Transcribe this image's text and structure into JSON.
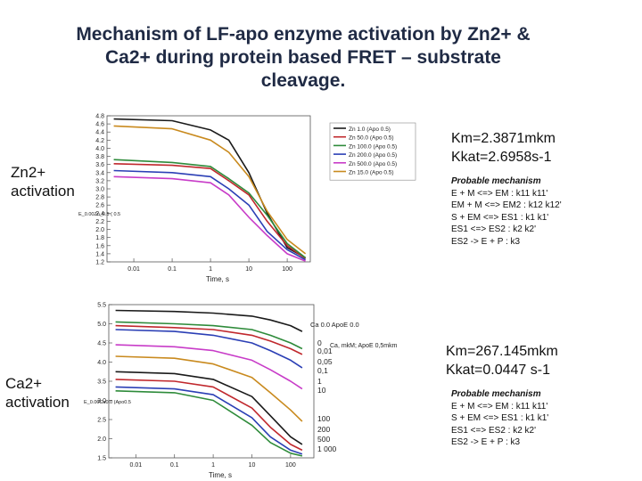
{
  "title_lines": [
    "Mechanism of LF-apo enzyme activation by Zn2+ &",
    "Ca2+ during protein based FRET – substrate",
    "cleavage."
  ],
  "zn": {
    "side_label_lines": [
      "Zn2+",
      "activation"
    ],
    "km": "Km=2.3871mkm",
    "kkat": "Kkat=2.6958s-1",
    "mechanism_title": "Probable mechanism",
    "mechanism_lines": [
      "E + M <=> EM : k11 k11'",
      "EM + M <=> EM2 : k12 k12'",
      "S + EM <=> ES1 : k1 k1'",
      "ES1 <=> ES2 : k2 k2'",
      "ES2 -> E + P : k3"
    ],
    "y_marker": "E_0.00Zn_0.5 ( 0.5"
  },
  "ca": {
    "side_label_lines": [
      "Ca2+",
      "activation"
    ],
    "km": "Km=267.145mkm",
    "kkat": "Kkat=0.0447 s-1",
    "mechanism_title": "Probable mechanism",
    "mechanism_lines": [
      "E + M <=> EM : k11 k11'",
      "S + EM <=> ES1 : k1 k1'",
      "ES1 <=> ES2 : k2 k2'",
      "ES2 -> E + P : k3"
    ],
    "y_marker": "E_0.00Ca0.0 (Apo0.5",
    "top_note": "Ca 0.0 ApoE 0.0",
    "legend_title": "Ca, mkM; ApoE 0,5mkm"
  },
  "chart_data": [
    {
      "type": "line",
      "title": "",
      "xlabel": "Time, s",
      "ylabel": "",
      "x_scale": "log",
      "xlim": [
        0.002,
        400
      ],
      "ylim": [
        1.2,
        4.8
      ],
      "x_ticks": [
        "0.01",
        "0.1",
        "1",
        "10",
        "100"
      ],
      "y_ticks": [
        "1.2",
        "1.4",
        "1.6",
        "1.8",
        "2.0",
        "2.2",
        "2.4",
        "2.6",
        "2.8",
        "3.0",
        "3.2",
        "3.4",
        "3.6",
        "3.8",
        "4.0",
        "4.2",
        "4.4",
        "4.6",
        "4.8"
      ],
      "legend_position": "top-right",
      "series": [
        {
          "name": "Zn 1.0 (Apo 0.5)",
          "color": "#1a1a1a",
          "x": [
            0.003,
            0.1,
            1,
            3,
            10,
            30,
            100,
            300
          ],
          "y": [
            4.72,
            4.68,
            4.45,
            4.2,
            3.4,
            2.4,
            1.55,
            1.3
          ]
        },
        {
          "name": "Zn 50.0 (Apo 0.5)",
          "color": "#c0282d",
          "x": [
            0.003,
            0.1,
            1,
            3,
            10,
            30,
            100,
            300
          ],
          "y": [
            3.62,
            3.58,
            3.5,
            3.2,
            2.85,
            2.2,
            1.6,
            1.28
          ]
        },
        {
          "name": "Zn 100.0 (Apo 0.5)",
          "color": "#2e8b3a",
          "x": [
            0.003,
            0.1,
            1,
            3,
            10,
            30,
            100,
            300
          ],
          "y": [
            3.72,
            3.65,
            3.55,
            3.25,
            2.9,
            2.35,
            1.65,
            1.3
          ]
        },
        {
          "name": "Zn 200.0 (Apo 0.5)",
          "color": "#2b3fb5",
          "x": [
            0.003,
            0.1,
            1,
            3,
            10,
            30,
            100,
            300
          ],
          "y": [
            3.45,
            3.4,
            3.3,
            3.0,
            2.6,
            1.95,
            1.5,
            1.25
          ]
        },
        {
          "name": "Zn 500.0 (Apo 0.5)",
          "color": "#c83cc8",
          "x": [
            0.003,
            0.1,
            1,
            3,
            10,
            30,
            100,
            300
          ],
          "y": [
            3.3,
            3.25,
            3.15,
            2.85,
            2.3,
            1.85,
            1.4,
            1.22
          ]
        },
        {
          "name": "Zn 15.0 (Apo 0.5)",
          "color": "#c98a1e",
          "x": [
            0.003,
            0.1,
            1,
            3,
            10,
            30,
            100,
            300
          ],
          "y": [
            4.55,
            4.48,
            4.2,
            3.9,
            3.3,
            2.45,
            1.75,
            1.4
          ]
        }
      ]
    },
    {
      "type": "line",
      "title": "",
      "xlabel": "Time, s",
      "ylabel": "",
      "x_scale": "log",
      "xlim": [
        0.002,
        400
      ],
      "ylim": [
        1.5,
        5.5
      ],
      "x_ticks": [
        "0.01",
        "0.1",
        "1",
        "10",
        "100"
      ],
      "y_ticks": [
        "1.5",
        "2.0",
        "2.5",
        "3.0",
        "3.5",
        "4.0",
        "4.5",
        "5.0",
        "5.5"
      ],
      "legend_position": "right",
      "series": [
        {
          "name": "0",
          "color": "#1a1a1a",
          "x": [
            0.003,
            0.1,
            1,
            10,
            30,
            100,
            200
          ],
          "y": [
            5.35,
            5.32,
            5.28,
            5.2,
            5.1,
            4.95,
            4.8
          ]
        },
        {
          "name": "0,01",
          "color": "#c0282d",
          "x": [
            0.003,
            0.1,
            1,
            10,
            30,
            100,
            200
          ],
          "y": [
            4.95,
            4.9,
            4.85,
            4.7,
            4.55,
            4.35,
            4.2
          ]
        },
        {
          "name": "0,05",
          "color": "#2e8b3a",
          "x": [
            0.003,
            0.1,
            1,
            10,
            30,
            100,
            200
          ],
          "y": [
            5.05,
            5.0,
            4.95,
            4.85,
            4.7,
            4.5,
            4.35
          ]
        },
        {
          "name": "0,1",
          "color": "#2b3fb5",
          "x": [
            0.003,
            0.1,
            1,
            10,
            30,
            100,
            200
          ],
          "y": [
            4.85,
            4.8,
            4.7,
            4.5,
            4.3,
            4.05,
            3.85
          ]
        },
        {
          "name": "1",
          "color": "#c83cc8",
          "x": [
            0.003,
            0.1,
            1,
            10,
            30,
            100,
            200
          ],
          "y": [
            4.45,
            4.4,
            4.3,
            4.05,
            3.8,
            3.5,
            3.3
          ]
        },
        {
          "name": "10",
          "color": "#c98a1e",
          "x": [
            0.003,
            0.1,
            1,
            10,
            30,
            100,
            200
          ],
          "y": [
            4.15,
            4.1,
            3.95,
            3.6,
            3.2,
            2.75,
            2.45
          ]
        },
        {
          "name": "100",
          "color": "#1a1a1a",
          "x": [
            0.003,
            0.1,
            1,
            10,
            30,
            100,
            200
          ],
          "y": [
            3.75,
            3.7,
            3.55,
            3.1,
            2.6,
            2.05,
            1.85
          ]
        },
        {
          "name": "200",
          "color": "#c0282d",
          "x": [
            0.003,
            0.1,
            1,
            10,
            30,
            100,
            200
          ],
          "y": [
            3.55,
            3.5,
            3.35,
            2.8,
            2.3,
            1.85,
            1.7
          ]
        },
        {
          "name": "500",
          "color": "#2b3fb5",
          "x": [
            0.003,
            0.1,
            1,
            10,
            30,
            100,
            200
          ],
          "y": [
            3.35,
            3.3,
            3.15,
            2.55,
            2.05,
            1.7,
            1.6
          ]
        },
        {
          "name": "1 000",
          "color": "#2e8b3a",
          "x": [
            0.003,
            0.1,
            1,
            10,
            30,
            100,
            200
          ],
          "y": [
            3.25,
            3.2,
            3.0,
            2.35,
            1.9,
            1.62,
            1.55
          ]
        }
      ]
    }
  ]
}
